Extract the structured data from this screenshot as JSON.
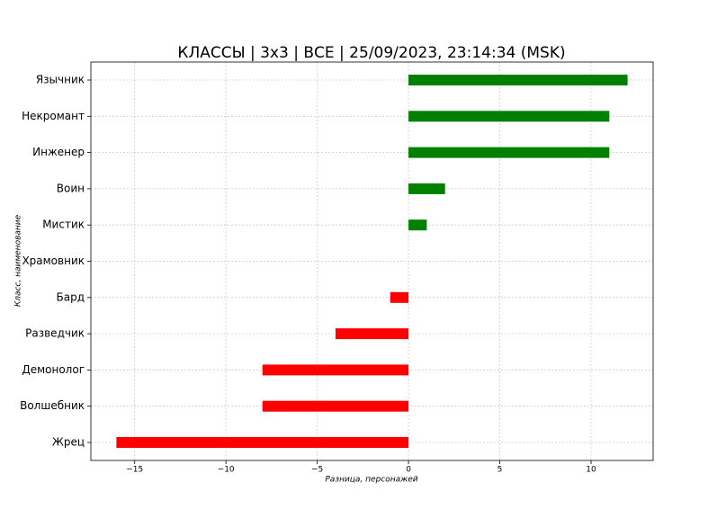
{
  "chart_data": {
    "type": "barh",
    "title": "КЛАССЫ | 3х3 | ВСЕ | 25/09/2023, 23:14:34 (MSK)",
    "xlabel": "Разница, персонажей",
    "ylabel": "Класс, наименование",
    "categories": [
      "Язычник",
      "Некромант",
      "Инженер",
      "Воин",
      "Мистик",
      "Храмовник",
      "Бард",
      "Разведчик",
      "Демонолог",
      "Волшебник",
      "Жрец"
    ],
    "values": [
      12,
      11,
      11,
      2,
      1,
      0,
      -1,
      -4,
      -8,
      -8,
      -16
    ],
    "colors": [
      "green",
      "green",
      "green",
      "green",
      "green",
      "red",
      "red",
      "red",
      "red",
      "red",
      "red"
    ],
    "xlim": [
      -17.4,
      13.4
    ],
    "xticks": [
      {
        "value": -15,
        "label": "−15"
      },
      {
        "value": -10,
        "label": "−10"
      },
      {
        "value": -5,
        "label": "−5"
      },
      0,
      5,
      10
    ],
    "grid": true
  }
}
